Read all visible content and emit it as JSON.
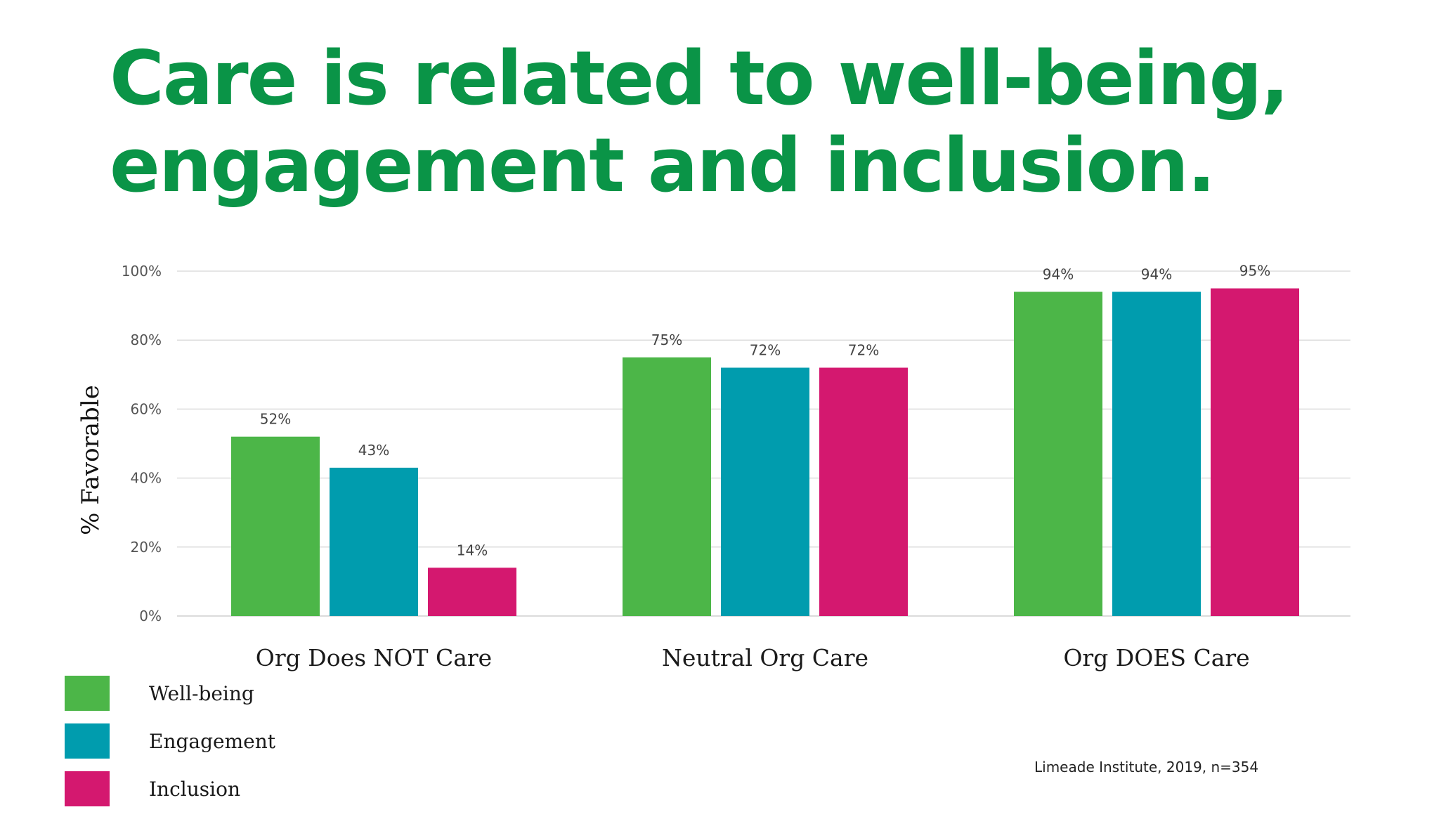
{
  "title": {
    "line1": "Care is related to well-being,",
    "line2": "engagement and inclusion."
  },
  "source": "Limeade Institute, 2019, n=354",
  "chart_data": {
    "type": "bar",
    "title": "Care is related to well-being, engagement and inclusion.",
    "xlabel": "",
    "ylabel": "% Favorable",
    "ylim": [
      0,
      100
    ],
    "yticks": [
      0,
      20,
      40,
      60,
      80,
      100
    ],
    "ytick_labels": [
      "0%",
      "20%",
      "40%",
      "60%",
      "80%",
      "100%"
    ],
    "grid": true,
    "legend_position": "bottom-left",
    "categories": [
      "Org Does NOT Care",
      "Neutral Org Care",
      "Org DOES Care"
    ],
    "series": [
      {
        "name": "Well-being",
        "color": "#4cb648",
        "values": [
          52,
          75,
          94
        ],
        "labels": [
          "52%",
          "75%",
          "94%"
        ]
      },
      {
        "name": "Engagement",
        "color": "#009cae",
        "values": [
          43,
          72,
          94
        ],
        "labels": [
          "43%",
          "72%",
          "94%"
        ]
      },
      {
        "name": "Inclusion",
        "color": "#d4186f",
        "values": [
          14,
          72,
          95
        ],
        "labels": [
          "14%",
          "72%",
          "95%"
        ]
      }
    ]
  }
}
